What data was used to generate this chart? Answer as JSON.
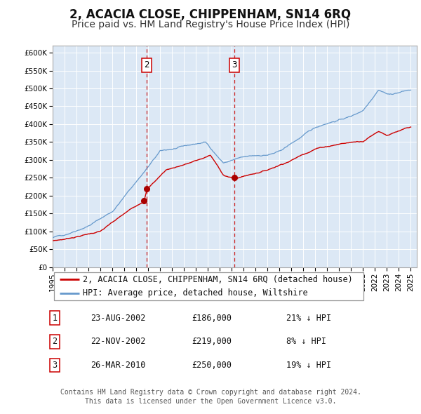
{
  "title": "2, ACACIA CLOSE, CHIPPENHAM, SN14 6RQ",
  "subtitle": "Price paid vs. HM Land Registry's House Price Index (HPI)",
  "ylim": [
    0,
    620000
  ],
  "yticks": [
    0,
    50000,
    100000,
    150000,
    200000,
    250000,
    300000,
    350000,
    400000,
    450000,
    500000,
    550000,
    600000
  ],
  "ytick_labels": [
    "£0",
    "£50K",
    "£100K",
    "£150K",
    "£200K",
    "£250K",
    "£300K",
    "£350K",
    "£400K",
    "£450K",
    "£500K",
    "£550K",
    "£600K"
  ],
  "xlim_start": 1995.0,
  "xlim_end": 2025.5,
  "xtick_years": [
    1995,
    1996,
    1997,
    1998,
    1999,
    2000,
    2001,
    2002,
    2003,
    2004,
    2005,
    2006,
    2007,
    2008,
    2009,
    2010,
    2011,
    2012,
    2013,
    2014,
    2015,
    2016,
    2017,
    2018,
    2019,
    2020,
    2021,
    2022,
    2023,
    2024,
    2025
  ],
  "background_color": "#dce8f5",
  "grid_color": "#ffffff",
  "red_line_color": "#cc0000",
  "blue_line_color": "#6699cc",
  "vline_color": "#cc2222",
  "transaction_marker_color": "#aa0000",
  "transaction1": {
    "date_num": 2002.64,
    "price": 186000,
    "label": "1"
  },
  "transaction2": {
    "date_num": 2002.895,
    "price": 219000,
    "label": "2"
  },
  "transaction3": {
    "date_num": 2010.23,
    "price": 250000,
    "label": "3"
  },
  "legend_label1": "2, ACACIA CLOSE, CHIPPENHAM, SN14 6RQ (detached house)",
  "legend_label2": "HPI: Average price, detached house, Wiltshire",
  "table_rows": [
    {
      "num": "1",
      "date": "23-AUG-2002",
      "price": "£186,000",
      "hpi": "21% ↓ HPI"
    },
    {
      "num": "2",
      "date": "22-NOV-2002",
      "price": "£219,000",
      "hpi": "8% ↓ HPI"
    },
    {
      "num": "3",
      "date": "26-MAR-2010",
      "price": "£250,000",
      "hpi": "19% ↓ HPI"
    }
  ],
  "footer": "Contains HM Land Registry data © Crown copyright and database right 2024.\nThis data is licensed under the Open Government Licence v3.0.",
  "title_fontsize": 12,
  "subtitle_fontsize": 10,
  "tick_fontsize": 7.5,
  "legend_fontsize": 8.5,
  "table_fontsize": 8.5,
  "footer_fontsize": 7
}
